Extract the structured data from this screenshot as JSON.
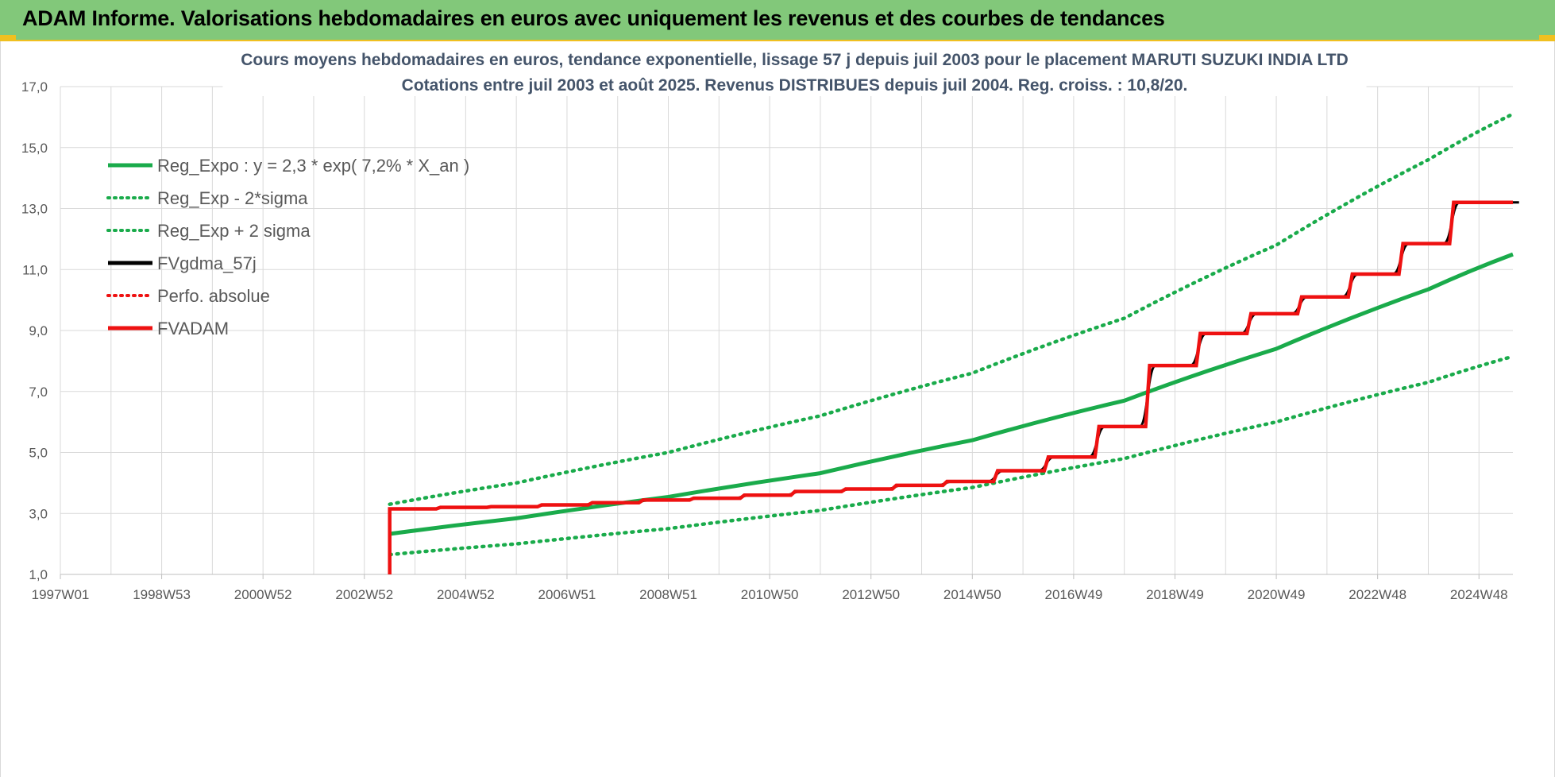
{
  "banner": {
    "title": "ADAM Informe. Valorisations hebdomadaires en euros avec uniquement les revenus et des courbes de tendances"
  },
  "colors": {
    "banner_bg": "#82c87a",
    "reg_expo": "#1aab4b",
    "fvgdma": "#000000",
    "fvadam": "#ee1111",
    "perfo": "#ee1111",
    "gridline": "#d9d9d9",
    "title_text": "#44546a",
    "axis_text": "#595959"
  },
  "chart_data": {
    "type": "line",
    "title_line1": "Cours moyens hebdomadaires en euros, tendance exponentielle, lissage 57 j depuis juil 2003 pour le placement MARUTI SUZUKI INDIA LTD",
    "title_line2": "Cotations entre juil 2003 et août 2025. Revenus DISTRIBUES depuis juil 2004. Reg. croiss. : 10,8/20.",
    "xlabel": "",
    "ylabel": "",
    "x_range": [
      1997.0,
      2025.67
    ],
    "ylim": [
      1.0,
      17.0
    ],
    "y_ticks": [
      "1,0",
      "3,0",
      "5,0",
      "7,0",
      "9,0",
      "11,0",
      "13,0",
      "15,0",
      "17,0"
    ],
    "y_tick_values": [
      1,
      3,
      5,
      7,
      9,
      11,
      13,
      15,
      17
    ],
    "x_ticks": [
      "1997W01",
      "1998W53",
      "2000W52",
      "2002W52",
      "2004W52",
      "2006W51",
      "2008W51",
      "2010W50",
      "2012W50",
      "2014W50",
      "2016W49",
      "2018W49",
      "2020W49",
      "2022W48",
      "2024W48"
    ],
    "x_tick_values": [
      1997.0,
      1999.0,
      2001.0,
      2003.0,
      2005.0,
      2007.0,
      2009.0,
      2011.0,
      2013.0,
      2015.0,
      2017.0,
      2019.0,
      2021.0,
      2023.0,
      2025.0
    ],
    "grid": "both",
    "legend_position": "top-left",
    "legend": [
      {
        "key": "reg_expo",
        "label": "Reg_Expo : y = 2,3 * exp( 7,2% *  X_an )",
        "style": "solid",
        "color": "#1aab4b"
      },
      {
        "key": "reg_lo",
        "label": "Reg_Exp - 2*sigma",
        "style": "dotted",
        "color": "#1aab4b"
      },
      {
        "key": "reg_hi",
        "label": "Reg_Exp + 2 sigma",
        "style": "dotted",
        "color": "#1aab4b"
      },
      {
        "key": "fvgdma",
        "label": "FVgdma_57j",
        "style": "solid",
        "color": "#000000"
      },
      {
        "key": "perfo",
        "label": "Perfo. absolue",
        "style": "dotted",
        "color": "#ee1111"
      },
      {
        "key": "fvadam",
        "label": "FVADAM",
        "style": "solid",
        "color": "#ee1111"
      }
    ],
    "series": [
      {
        "name": "Reg_Expo : y = 2,3 * exp( 7,2% *  X_an )",
        "key": "reg_expo",
        "x": [
          2003.5,
          2006,
          2009,
          2012,
          2015,
          2018,
          2021,
          2024,
          2025.67
        ],
        "y": [
          2.33,
          2.84,
          3.54,
          4.32,
          5.4,
          6.7,
          8.4,
          10.35,
          11.5
        ]
      },
      {
        "name": "Reg_Exp - 2*sigma",
        "key": "reg_lo",
        "x": [
          2003.5,
          2006,
          2009,
          2012,
          2015,
          2018,
          2021,
          2024,
          2025.67
        ],
        "y": [
          1.65,
          2.0,
          2.5,
          3.1,
          3.85,
          4.8,
          6.0,
          7.3,
          8.15
        ]
      },
      {
        "name": "Reg_Exp + 2 sigma",
        "key": "reg_hi",
        "x": [
          2003.5,
          2006,
          2009,
          2012,
          2015,
          2018,
          2021,
          2024,
          2025.67
        ],
        "y": [
          3.3,
          4.0,
          5.0,
          6.2,
          7.6,
          9.4,
          11.8,
          14.6,
          16.1
        ]
      },
      {
        "name": "FVgdma_57j",
        "key": "fvgdma",
        "x": [
          2003.5,
          2004.5,
          2005.5,
          2006.5,
          2007.5,
          2008.5,
          2009.5,
          2010.5,
          2011.5,
          2012.5,
          2013.5,
          2014.5,
          2015.5,
          2016.5,
          2017.5,
          2018.5,
          2019.5,
          2020.5,
          2021.5,
          2022.5,
          2023.5,
          2024.5,
          2025.67
        ],
        "y": [
          3.15,
          3.2,
          3.22,
          3.28,
          3.35,
          3.44,
          3.5,
          3.6,
          3.72,
          3.8,
          3.92,
          4.05,
          4.4,
          4.85,
          5.85,
          7.85,
          8.9,
          9.55,
          10.1,
          10.85,
          11.85,
          13.2,
          13.2
        ]
      },
      {
        "name": "FVADAM",
        "key": "fvadam",
        "x": [
          2003.5,
          2004.5,
          2005.5,
          2006.5,
          2007.5,
          2008.5,
          2009.5,
          2010.5,
          2011.5,
          2012.5,
          2013.5,
          2014.5,
          2015.5,
          2016.5,
          2017.5,
          2018.5,
          2019.5,
          2020.5,
          2021.5,
          2022.5,
          2023.5,
          2024.5,
          2025.67
        ],
        "y": [
          3.15,
          3.2,
          3.22,
          3.28,
          3.35,
          3.44,
          3.5,
          3.6,
          3.72,
          3.8,
          3.92,
          4.05,
          4.4,
          4.85,
          5.85,
          7.85,
          8.9,
          9.55,
          10.1,
          10.85,
          11.85,
          13.2,
          13.2
        ]
      }
    ]
  }
}
